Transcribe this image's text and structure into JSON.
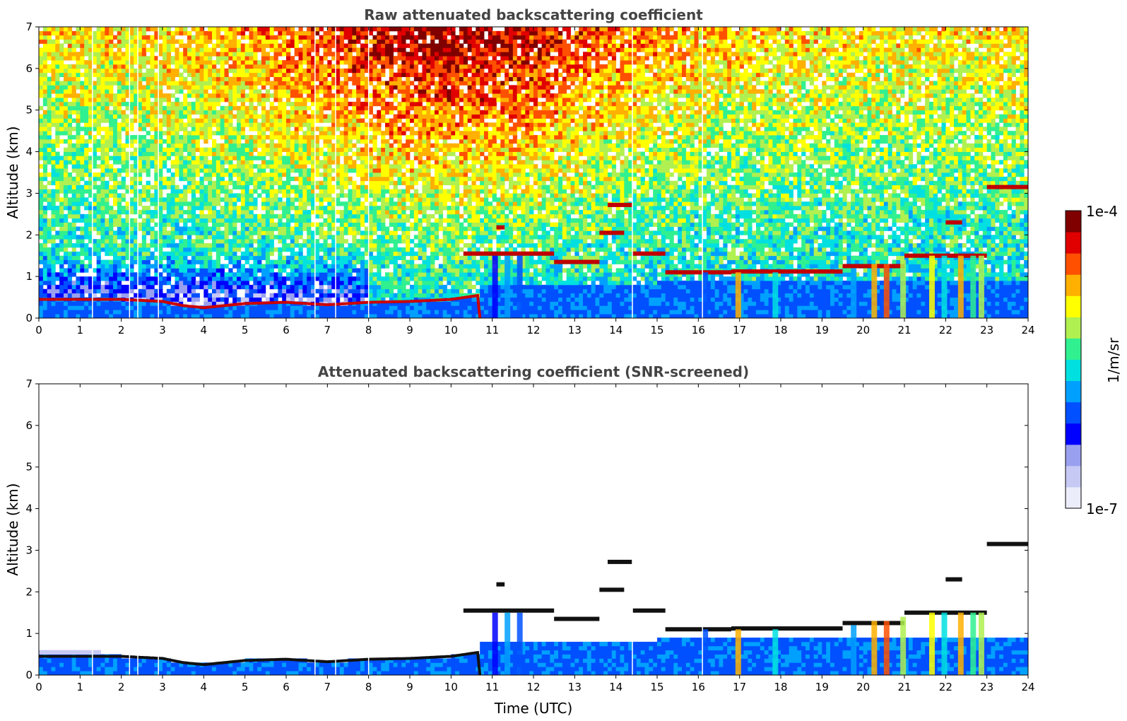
{
  "chart_data": [
    {
      "type": "heatmap",
      "title": "Raw attenuated backscattering coefficient",
      "xlabel": "",
      "ylabel": "Altitude (km)",
      "xlim": [
        0,
        24
      ],
      "ylim": [
        0,
        7
      ],
      "xticks": [
        "0",
        "1",
        "2",
        "3",
        "4",
        "5",
        "6",
        "7",
        "8",
        "9",
        "10",
        "11",
        "12",
        "13",
        "14",
        "15",
        "16",
        "17",
        "18",
        "19",
        "20",
        "21",
        "22",
        "23",
        "24"
      ],
      "yticks": [
        "0",
        "1",
        "2",
        "3",
        "4",
        "5",
        "6",
        "7"
      ],
      "screened": false,
      "boundary_layer_top": [
        {
          "x": 0.0,
          "y": 0.45
        },
        {
          "x": 1.0,
          "y": 0.45
        },
        {
          "x": 2.0,
          "y": 0.45
        },
        {
          "x": 3.0,
          "y": 0.4
        },
        {
          "x": 3.5,
          "y": 0.3
        },
        {
          "x": 4.0,
          "y": 0.25
        },
        {
          "x": 5.0,
          "y": 0.35
        },
        {
          "x": 6.0,
          "y": 0.38
        },
        {
          "x": 7.0,
          "y": 0.32
        },
        {
          "x": 8.0,
          "y": 0.38
        },
        {
          "x": 9.0,
          "y": 0.4
        },
        {
          "x": 10.0,
          "y": 0.45
        },
        {
          "x": 10.7,
          "y": 0.55
        }
      ],
      "cloud_layers": [
        {
          "x_start": 10.3,
          "x_end": 12.5,
          "y": 1.55
        },
        {
          "x_start": 12.5,
          "x_end": 13.6,
          "y": 1.35
        },
        {
          "x_start": 13.6,
          "x_end": 14.2,
          "y": 2.05
        },
        {
          "x_start": 13.8,
          "x_end": 14.4,
          "y": 2.72
        },
        {
          "x_start": 11.1,
          "x_end": 11.3,
          "y": 2.18
        },
        {
          "x_start": 14.4,
          "x_end": 15.2,
          "y": 1.55
        },
        {
          "x_start": 15.2,
          "x_end": 16.8,
          "y": 1.1
        },
        {
          "x_start": 16.8,
          "x_end": 19.5,
          "y": 1.12
        },
        {
          "x_start": 19.5,
          "x_end": 21.0,
          "y": 1.25
        },
        {
          "x_start": 21.0,
          "x_end": 23.0,
          "y": 1.5
        },
        {
          "x_start": 22.0,
          "x_end": 22.4,
          "y": 2.3
        },
        {
          "x_start": 23.0,
          "x_end": 24.0,
          "y": 3.15
        }
      ]
    },
    {
      "type": "heatmap",
      "title": "Attenuated backscattering coefficient (SNR-screened)",
      "xlabel": "Time (UTC)",
      "ylabel": "Altitude (km)",
      "xlim": [
        0,
        24
      ],
      "ylim": [
        0,
        7
      ],
      "xticks": [
        "0",
        "1",
        "2",
        "3",
        "4",
        "5",
        "6",
        "7",
        "8",
        "9",
        "10",
        "11",
        "12",
        "13",
        "14",
        "15",
        "16",
        "17",
        "18",
        "19",
        "20",
        "21",
        "22",
        "23",
        "24"
      ],
      "yticks": [
        "0",
        "1",
        "2",
        "3",
        "4",
        "5",
        "6",
        "7"
      ],
      "screened": true
    }
  ],
  "colorbar": {
    "min_label": "1e-7",
    "max_label": "1e-4",
    "label": "1/m/sr",
    "colors": [
      "#ecedfb",
      "#c7c9f5",
      "#9aa0f0",
      "#0000ff",
      "#0050ff",
      "#00a0ff",
      "#00e0e0",
      "#30f090",
      "#b0f050",
      "#ffff00",
      "#ffb000",
      "#ff5000",
      "#e00000",
      "#800000"
    ]
  }
}
